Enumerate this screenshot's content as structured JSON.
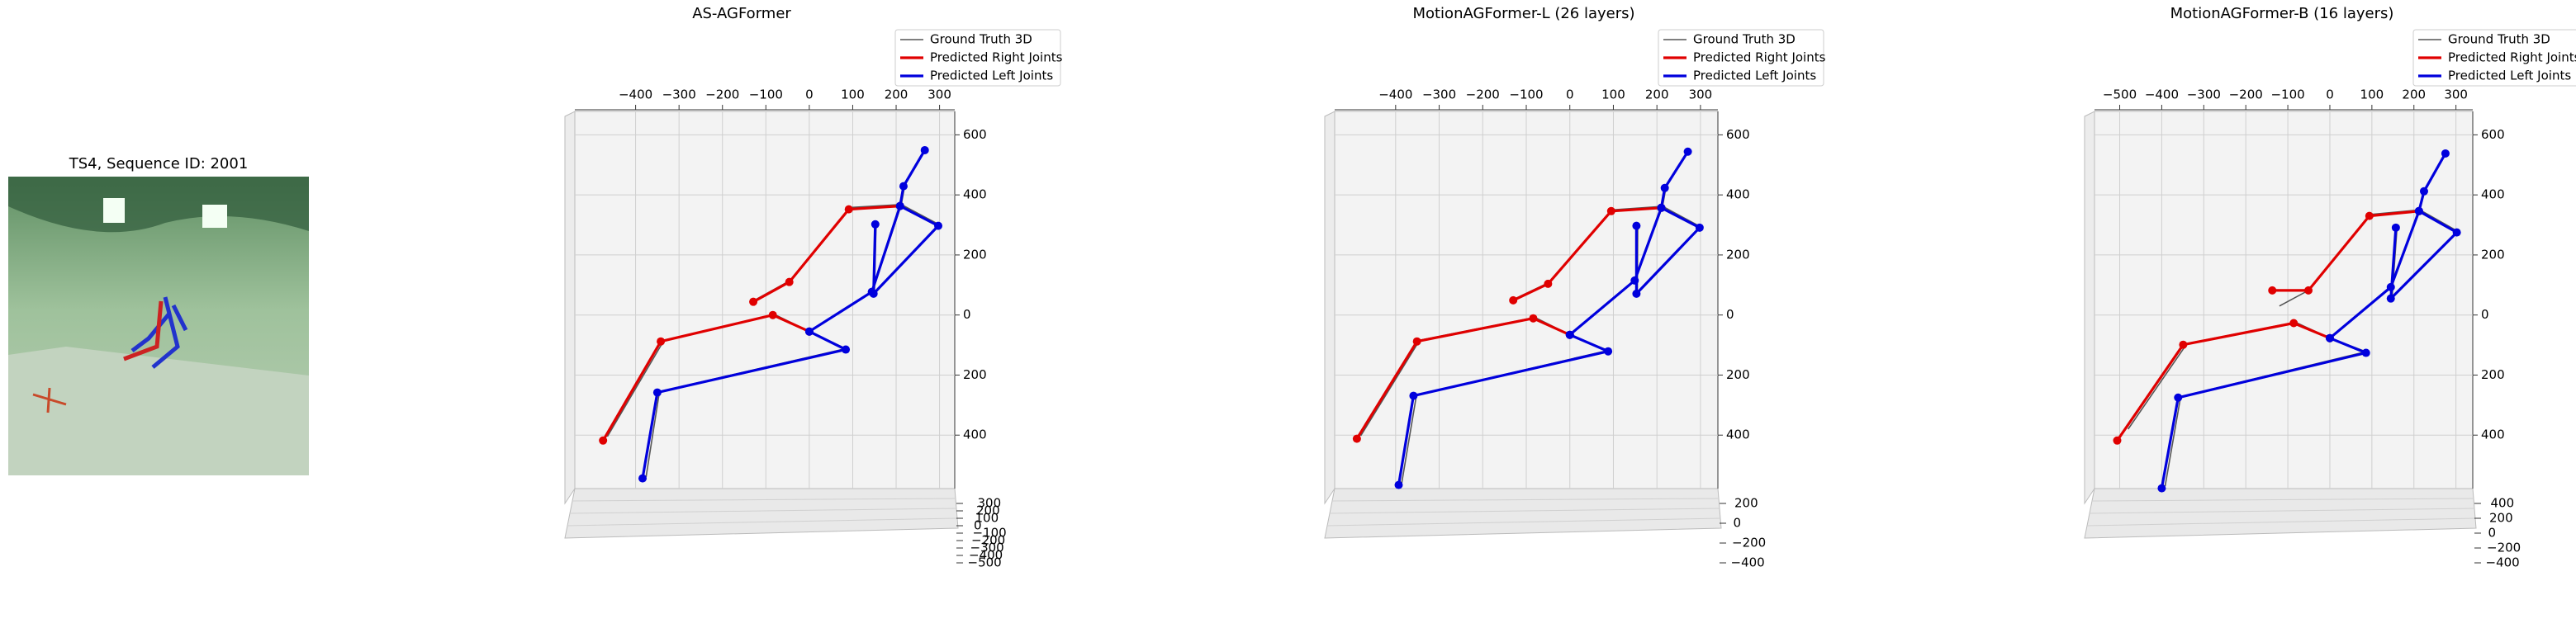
{
  "image_panel": {
    "title": "TS4, Sequence ID: 2001"
  },
  "chart_data": [
    {
      "type": "line",
      "title": "AS-AGFormer",
      "xlim": [
        -540,
        335
      ],
      "ylim": [
        -600,
        700
      ],
      "xticks": [
        {
          "value": -400,
          "label": "−400"
        },
        {
          "value": -300,
          "label": "−300"
        },
        {
          "value": -200,
          "label": "−200"
        },
        {
          "value": -100,
          "label": "−100"
        },
        0,
        100,
        200,
        300
      ],
      "yticks": [
        600,
        400,
        200,
        0,
        {
          "value": -200,
          "label": "200"
        },
        {
          "value": -400,
          "label": "400"
        }
      ],
      "zticks": [
        300,
        200,
        100,
        0,
        {
          "value": -100,
          "label": "−100"
        },
        {
          "value": -200,
          "label": "−200"
        },
        {
          "value": -300,
          "label": "−300"
        },
        {
          "value": -400,
          "label": "−400"
        },
        {
          "value": -500,
          "label": "−500"
        }
      ],
      "grid": true,
      "series": [
        {
          "name": "Ground Truth 3D",
          "color": "#555555",
          "x": [
            -465,
            -335,
            -80,
            0,
            null,
            -125,
            -44,
            94,
            212,
            null,
            0,
            84,
            -345,
            -376,
            null,
            0,
            146,
            212,
            220,
            268,
            null,
            212,
            300,
            150,
            154
          ],
          "values": [
            -405,
            -85,
            2,
            -55,
            null,
            50,
            115,
            358,
            368,
            null,
            -55,
            -112,
            -255,
            -540,
            null,
            -55,
            80,
            368,
            432,
            552,
            null,
            368,
            300,
            74,
            305
          ]
        },
        {
          "name": "Predicted Right Joints",
          "color": "#e00000",
          "x": [
            -475,
            -342,
            -84,
            0,
            null,
            -129,
            -46,
            91,
            209
          ],
          "values": [
            -418,
            -88,
            0,
            -55,
            null,
            44,
            110,
            352,
            363
          ]
        },
        {
          "name": "Predicted Left Joints",
          "color": "#0000dd",
          "x": [
            0,
            84,
            -350,
            -384,
            null,
            0,
            144,
            209,
            217,
            266,
            null,
            209,
            297,
            148,
            152
          ],
          "values": [
            -55,
            -115,
            -258,
            -544,
            null,
            -55,
            77,
            363,
            429,
            549,
            null,
            363,
            297,
            71,
            302
          ]
        }
      ]
    },
    {
      "type": "line",
      "title": "MotionAGFormer-L (26 layers)",
      "xlim": [
        -540,
        340
      ],
      "ylim": [
        -600,
        700
      ],
      "xticks": [
        {
          "value": -400,
          "label": "−400"
        },
        {
          "value": -300,
          "label": "−300"
        },
        {
          "value": -200,
          "label": "−200"
        },
        {
          "value": -100,
          "label": "−100"
        },
        0,
        100,
        200,
        300
      ],
      "yticks": [
        600,
        400,
        200,
        0,
        {
          "value": -200,
          "label": "200"
        },
        {
          "value": -400,
          "label": "400"
        }
      ],
      "zticks": [
        200,
        0,
        {
          "value": -200,
          "label": "−200"
        },
        {
          "value": -400,
          "label": "−400"
        }
      ],
      "grid": true,
      "series": [
        {
          "name": "Ground Truth 3D",
          "color": "#555555",
          "x": [
            -480,
            -345,
            -80,
            0,
            null,
            -126,
            -48,
            98,
            213,
            null,
            0,
            88,
            -352,
            -386,
            null,
            0,
            150,
            213,
            221,
            273,
            null,
            213,
            300,
            155,
            156
          ],
          "values": [
            -402,
            -84,
            -8,
            -66,
            null,
            54,
            108,
            350,
            362,
            null,
            -66,
            -118,
            -266,
            -560,
            null,
            -66,
            118,
            362,
            427,
            548,
            null,
            362,
            294,
            74,
            300
          ]
        },
        {
          "name": "Predicted Right Joints",
          "color": "#e00000",
          "x": [
            -489,
            -351,
            -84,
            0,
            null,
            -130,
            -50,
            95,
            210
          ],
          "values": [
            -412,
            -88,
            -11,
            -66,
            null,
            49,
            104,
            346,
            357
          ]
        },
        {
          "name": "Predicted Left Joints",
          "color": "#0000dd",
          "x": [
            0,
            88,
            -359,
            -393,
            null,
            0,
            149,
            210,
            218,
            271,
            null,
            210,
            298,
            153,
            153
          ],
          "values": [
            -66,
            -121,
            -269,
            -566,
            null,
            -66,
            115,
            357,
            423,
            544,
            null,
            357,
            291,
            71,
            297
          ]
        }
      ]
    },
    {
      "type": "line",
      "title": "MotionAGFormer-B (16 layers)",
      "xlim": [
        -560,
        340
      ],
      "ylim": [
        -600,
        700
      ],
      "xticks": [
        {
          "value": -500,
          "label": "−500"
        },
        {
          "value": -400,
          "label": "−400"
        },
        {
          "value": -300,
          "label": "−300"
        },
        {
          "value": -200,
          "label": "−200"
        },
        {
          "value": -100,
          "label": "−100"
        },
        0,
        100,
        200,
        300
      ],
      "yticks": [
        600,
        400,
        200,
        0,
        {
          "value": -200,
          "label": "200"
        },
        {
          "value": -400,
          "label": "400"
        }
      ],
      "zticks": [
        400,
        200,
        0,
        {
          "value": -200,
          "label": "−200"
        },
        {
          "value": -400,
          "label": "−400"
        }
      ],
      "grid": true,
      "series": [
        {
          "name": "Ground Truth 3D",
          "color": "#555555",
          "x": [
            -480,
            -340,
            -82,
            0,
            null,
            -120,
            -51,
            98,
            214,
            null,
            0,
            86,
            -355,
            -392,
            null,
            0,
            147,
            214,
            226,
            277,
            null,
            214,
            304,
            148,
            160
          ],
          "values": [
            -380,
            -95,
            -24,
            -77,
            null,
            30,
            82,
            335,
            350,
            null,
            -77,
            -122,
            -272,
            -570,
            null,
            -77,
            96,
            350,
            416,
            541,
            null,
            350,
            279,
            58,
            294
          ]
        },
        {
          "name": "Predicted Right Joints",
          "color": "#e00000",
          "x": [
            -506,
            -349,
            -86,
            0,
            null,
            -137,
            -51,
            94,
            212
          ],
          "values": [
            -418,
            -99,
            -27,
            -77,
            null,
            82,
            82,
            330,
            346
          ]
        },
        {
          "name": "Predicted Left Joints",
          "color": "#0000dd",
          "x": [
            0,
            86,
            -361,
            -400,
            null,
            0,
            145,
            212,
            224,
            275,
            null,
            212,
            302,
            145,
            157
          ],
          "values": [
            -77,
            -126,
            -275,
            -577,
            null,
            -77,
            93,
            346,
            412,
            538,
            null,
            346,
            275,
            55,
            291
          ]
        }
      ]
    }
  ]
}
